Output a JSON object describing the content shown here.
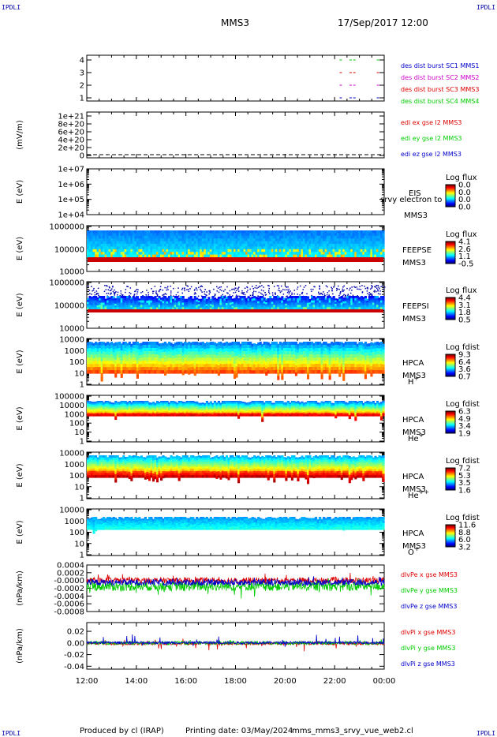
{
  "corner_tag": "IPDLI",
  "header": {
    "spacecraft": "MMS3",
    "datetime": "17/Sep/2017 12:00"
  },
  "footer": {
    "producer": "Produced by cl (IRAP)",
    "print_date": "Printing date: 03/May/2024",
    "script": "mms_mms3_srvy_vue_web2.cl"
  },
  "colors": {
    "red": "#dd0000",
    "green": "#00cc00",
    "blue": "#0000cc",
    "magenta": "#cc00cc",
    "black": "#000000"
  },
  "chart_data": [
    {
      "type": "scatter",
      "panel": "burst",
      "yticks": [
        "4",
        "3",
        "2",
        "1"
      ],
      "ylim": [
        0.5,
        4.5
      ],
      "legend": [
        {
          "text": "des dist burst SC1 MMS1",
          "color": "#0000cc"
        },
        {
          "text": "des dist burst SC2 MMS2",
          "color": "#cc00cc"
        },
        {
          "text": "des dist burst SC3 MMS3",
          "color": "#dd0000"
        },
        {
          "text": "des dist burst SC4 MMS4",
          "color": "#00cc00"
        }
      ],
      "series": [
        {
          "name": "des dist burst SC1 MMS1",
          "y": 1,
          "x_hours": [
            22.2,
            22.6,
            22.75,
            23.7
          ]
        },
        {
          "name": "des dist burst SC2 MMS2",
          "y": 2,
          "x_hours": [
            22.2,
            22.6,
            22.75,
            23.7
          ]
        },
        {
          "name": "des dist burst SC3 MMS3",
          "y": 3,
          "x_hours": [
            22.2,
            22.6,
            22.75,
            23.7
          ]
        },
        {
          "name": "des dist burst SC4 MMS4",
          "y": 4,
          "x_hours": [
            22.2,
            22.6,
            22.75,
            23.7
          ]
        }
      ]
    },
    {
      "type": "line",
      "panel": "edi",
      "ylabel": "(mV/m)",
      "yticks": [
        "1e+21",
        "8e+20",
        "6e+20",
        "4e+20",
        "2e+20",
        "0"
      ],
      "legend": [
        {
          "text": "edi ex gse l2 MMS3",
          "color": "#dd0000"
        },
        {
          "text": "edi ey gse l2 MMS3",
          "color": "#00cc00"
        },
        {
          "text": "edi ez gse l2 MMS3",
          "color": "#0000cc"
        }
      ],
      "series": [
        {
          "y": 0,
          "style": "dashed"
        }
      ]
    },
    {
      "type": "heatmap",
      "panel": "eis",
      "ylabel": "E (eV)",
      "yticks": [
        "1e+07",
        "1e+06",
        "1e+05",
        "1e+04"
      ],
      "instrument": "EIS",
      "instrument_sub": "MMS3",
      "overlay_text": "srvy electron to",
      "cbar_title": "Log flux",
      "cbar_ticks": [
        "0.0",
        "0.0",
        "0.0",
        "0.0"
      ]
    },
    {
      "type": "heatmap",
      "panel": "feepse",
      "ylabel": "E (eV)",
      "yticks": [
        "1000000",
        "100000",
        "10000"
      ],
      "instrument": "FEEPSE",
      "instrument_sub": "MMS3",
      "cbar_title": "Log flux",
      "cbar_ticks": [
        "4.1",
        "2.6",
        "1.1",
        "-0.5"
      ]
    },
    {
      "type": "heatmap",
      "panel": "feepsi",
      "ylabel": "E (eV)",
      "yticks": [
        "1000000",
        "100000",
        "10000"
      ],
      "instrument": "FEEPSI",
      "instrument_sub": "MMS3",
      "cbar_title": "Log flux",
      "cbar_ticks": [
        "4.4",
        "3.1",
        "1.8",
        "0.5"
      ]
    },
    {
      "type": "heatmap",
      "panel": "hpca_h",
      "ylabel": "E (eV)",
      "yticks": [
        "10000",
        "1000",
        "100",
        "10",
        "1"
      ],
      "instrument": "HPCA",
      "instrument_sub": "MMS3",
      "species": "H",
      "species_charge": "+",
      "cbar_title": "Log fdist",
      "cbar_ticks": [
        "9.3",
        "6.4",
        "3.6",
        "0.7"
      ]
    },
    {
      "type": "heatmap",
      "panel": "hpca_he1",
      "ylabel": "E (eV)",
      "yticks": [
        "100000",
        "10000",
        "1000",
        "100",
        "10",
        "1"
      ],
      "instrument": "HPCA",
      "instrument_sub": "MMS3",
      "species": "He",
      "species_charge": "+",
      "cbar_title": "Log fdist",
      "cbar_ticks": [
        "6.3",
        "4.9",
        "3.4",
        "1.9"
      ]
    },
    {
      "type": "heatmap",
      "panel": "hpca_he2",
      "ylabel": "E (eV)",
      "yticks": [
        "10000",
        "1000",
        "100",
        "10",
        "1"
      ],
      "instrument": "HPCA",
      "instrument_sub": "MMS3",
      "species": "He",
      "species_charge": "++",
      "cbar_title": "Log fdist",
      "cbar_ticks": [
        "7.2",
        "5.3",
        "3.5",
        "1.6"
      ]
    },
    {
      "type": "heatmap",
      "panel": "hpca_o",
      "ylabel": "E (eV)",
      "yticks": [
        "10000",
        "1000",
        "100",
        "10",
        "1"
      ],
      "instrument": "HPCA",
      "instrument_sub": "MMS3",
      "species": "O",
      "species_charge": "+",
      "cbar_title": "Log fdist",
      "cbar_ticks": [
        "11.6",
        "8.8",
        "6.0",
        "3.2"
      ]
    },
    {
      "type": "line",
      "panel": "divpe",
      "ylabel": "(nPa/km)",
      "yticks": [
        "0.0004",
        "0.0002",
        "-0.0000",
        "-0.0002",
        "-0.0004",
        "-0.0006",
        "-0.0008"
      ],
      "ylim": [
        -0.0008,
        0.0004
      ],
      "legend": [
        {
          "text": "dlvPe x gse MMS3",
          "color": "#dd0000"
        },
        {
          "text": "dlvPe y gse MMS3",
          "color": "#00cc00"
        },
        {
          "text": "dlvPe z gse MMS3",
          "color": "#0000cc"
        }
      ]
    },
    {
      "type": "line",
      "panel": "divpi",
      "ylabel": "(nPa/km)",
      "yticks": [
        "0.02",
        "0.00",
        "-0.02",
        "-0.04"
      ],
      "ylim": [
        -0.045,
        0.035
      ],
      "legend": [
        {
          "text": "dlvPi x gse MMS3",
          "color": "#dd0000"
        },
        {
          "text": "dlvPi y gse MMS3",
          "color": "#00cc00"
        },
        {
          "text": "dlvPi z gse MMS3",
          "color": "#0000cc"
        }
      ]
    }
  ],
  "xaxis": {
    "ticks": [
      "12:00",
      "14:00",
      "16:00",
      "18:00",
      "20:00",
      "22:00",
      "00:00"
    ],
    "range_hours": [
      12,
      24
    ]
  }
}
